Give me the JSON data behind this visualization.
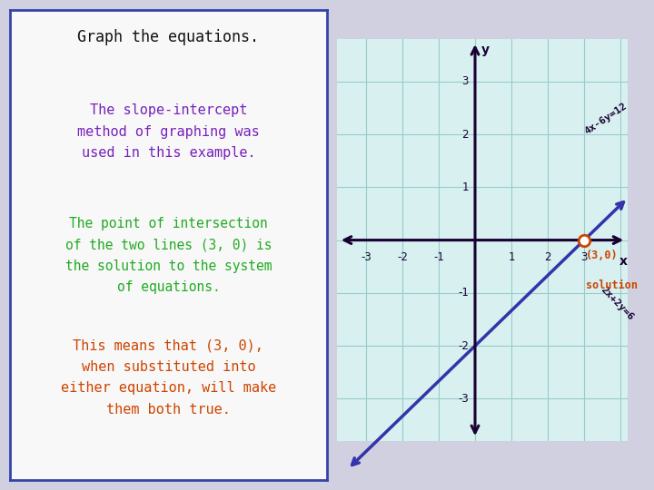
{
  "title": "Graph the equations.",
  "text1": "The slope-intercept\nmethod of graphing was\nused in this example.",
  "text2": "The point of intersection\nof the two lines (3, 0) is\nthe solution to the system\nof equations.",
  "text3": "This means that (3, 0),\nwhen substituted into\neither equation, will make\nthem both true.",
  "text1_color": "#7722bb",
  "text2_color": "#22aa22",
  "text3_color": "#cc4400",
  "title_color": "#111111",
  "bg_color": "#f8f8f8",
  "outer_bg": "#d0d0e0",
  "panel_border_color": "#3344aa",
  "grid_bg": "#d8f0f0",
  "grid_color": "#99cccc",
  "axis_color": "#1a0033",
  "line_green_color": "#22cc66",
  "line_blue_color": "#3333aa",
  "label1": "4x-6y=12",
  "label2": "2x+2y=6",
  "solution_label_line1": "(3,0)",
  "solution_label_line2": "solution",
  "solution_color": "#cc4400",
  "xlim": [
    -3.8,
    4.2
  ],
  "ylim": [
    -3.8,
    3.8
  ],
  "xticks": [
    -3,
    -2,
    -1,
    1,
    2,
    3
  ],
  "yticks": [
    -3,
    -2,
    -1,
    1,
    2,
    3
  ]
}
